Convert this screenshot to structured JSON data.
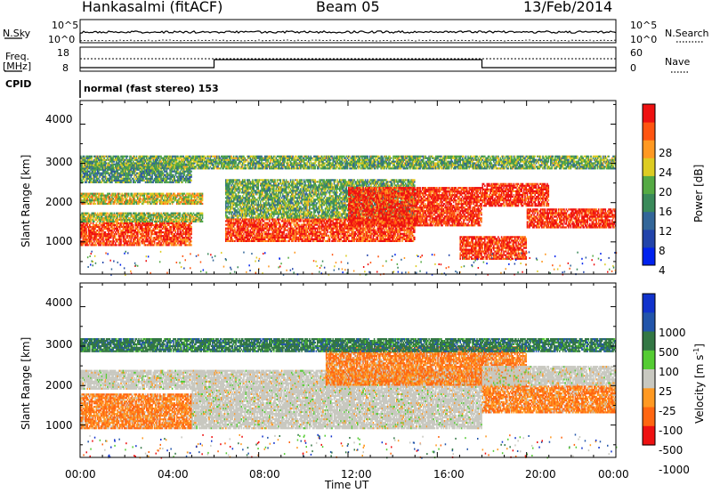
{
  "header": {
    "station": "Hankasalmi (fitACF)",
    "beam": "Beam 05",
    "date": "13/Feb/2014"
  },
  "nsky": {
    "left_label": "N.Sky",
    "right_label": "N.Search",
    "left_ticks": [
      "10^5",
      "10^0"
    ],
    "right_ticks": [
      "10^5",
      "10^0"
    ]
  },
  "freq": {
    "left_label_1": "Freq.",
    "left_label_2": "[MHz]",
    "right_label": "Nave",
    "left_ticks": [
      "18",
      "8"
    ],
    "right_ticks": [
      "60",
      "0"
    ],
    "cpid_label": "CPID",
    "mode": "normal (fast stereo) 153",
    "freq_series": [
      {
        "t": 0,
        "level": "low"
      },
      {
        "t": 6,
        "level": "high"
      },
      {
        "t": 18,
        "level": "low"
      },
      {
        "t": 24,
        "level": "low"
      }
    ]
  },
  "power_panel": {
    "ylabel": "Slant Range [km]",
    "yticks": [
      "4000",
      "3000",
      "2000",
      "1000"
    ],
    "colorbar_label": "Power [dB]",
    "colorbar_ticks": [
      "28",
      "24",
      "20",
      "16",
      "12",
      "8",
      "4"
    ],
    "colors": [
      "#0022ee",
      "#2244aa",
      "#336699",
      "#3a8a5a",
      "#55aa44",
      "#ddcc22",
      "#ff9922",
      "#ff5511",
      "#ee1111"
    ]
  },
  "velocity_panel": {
    "ylabel": "Slant Range [km]",
    "yticks": [
      "4000",
      "3000",
      "2000",
      "1000"
    ],
    "colorbar_label": "Velocity [m s",
    "colorbar_unit_sup": "-1",
    "colorbar_unit_close": "]",
    "colorbar_ticks": [
      "1000",
      "500",
      "100",
      "25",
      "-25",
      "-100",
      "-500",
      "-1000"
    ],
    "colors": [
      "#1133cc",
      "#2255aa",
      "#337744",
      "#55cc33",
      "#c8c8c0",
      "#ff9922",
      "#ff6611",
      "#ee1111"
    ]
  },
  "x_axis": {
    "label": "Time UT",
    "ticks": [
      "00:00",
      "04:00",
      "08:00",
      "12:00",
      "16:00",
      "20:00",
      "00:00"
    ]
  },
  "chart_data": {
    "type": "heatmap",
    "title": "Hankasalmi (fitACF) Beam 05 13/Feb/2014",
    "xlabel": "Time UT",
    "ylabel": "Slant Range [km]",
    "xlim": [
      0,
      24
    ],
    "ylim": [
      180,
      4600
    ],
    "power_bands": [
      {
        "t0": 0.0,
        "t1": 5.0,
        "r0": 900,
        "r1": 1500,
        "dB": 26
      },
      {
        "t0": 0.0,
        "t1": 5.5,
        "r0": 1500,
        "r1": 1750,
        "dB": 16
      },
      {
        "t0": 0.0,
        "t1": 5.5,
        "r0": 1950,
        "r1": 2250,
        "dB": 18
      },
      {
        "t0": 0.0,
        "t1": 5.0,
        "r0": 2500,
        "r1": 3000,
        "dB": 12
      },
      {
        "t0": 6.5,
        "t1": 15.0,
        "r0": 1000,
        "r1": 1600,
        "dB": 26
      },
      {
        "t0": 6.5,
        "t1": 15.0,
        "r0": 1600,
        "r1": 2600,
        "dB": 14
      },
      {
        "t0": 12.0,
        "t1": 18.0,
        "r0": 1400,
        "r1": 2400,
        "dB": 27
      },
      {
        "t0": 18.0,
        "t1": 21.0,
        "r0": 1900,
        "r1": 2500,
        "dB": 27
      },
      {
        "t0": 20.0,
        "t1": 24.0,
        "r0": 1350,
        "r1": 1850,
        "dB": 27
      },
      {
        "t0": 17.0,
        "t1": 20.0,
        "r0": 550,
        "r1": 1150,
        "dB": 27
      },
      {
        "t0": 0.0,
        "t1": 24.0,
        "r0": 2850,
        "r1": 3200,
        "dB": 14
      }
    ],
    "velocity_bands": [
      {
        "t0": 0.0,
        "t1": 5.0,
        "r0": 900,
        "r1": 1800,
        "v": -100
      },
      {
        "t0": 0.0,
        "t1": 5.5,
        "r0": 1900,
        "r1": 2400,
        "v": 0
      },
      {
        "t0": 5.0,
        "t1": 18.0,
        "r0": 900,
        "r1": 2400,
        "v": 0
      },
      {
        "t0": 11.0,
        "t1": 20.0,
        "r0": 2000,
        "r1": 3000,
        "v": -100
      },
      {
        "t0": 18.0,
        "t1": 24.0,
        "r0": 1300,
        "r1": 2000,
        "v": -100
      },
      {
        "t0": 18.0,
        "t1": 24.0,
        "r0": 2000,
        "r1": 2500,
        "v": 0
      },
      {
        "t0": 0.0,
        "t1": 24.0,
        "r0": 2850,
        "r1": 3200,
        "v": 200
      }
    ]
  }
}
